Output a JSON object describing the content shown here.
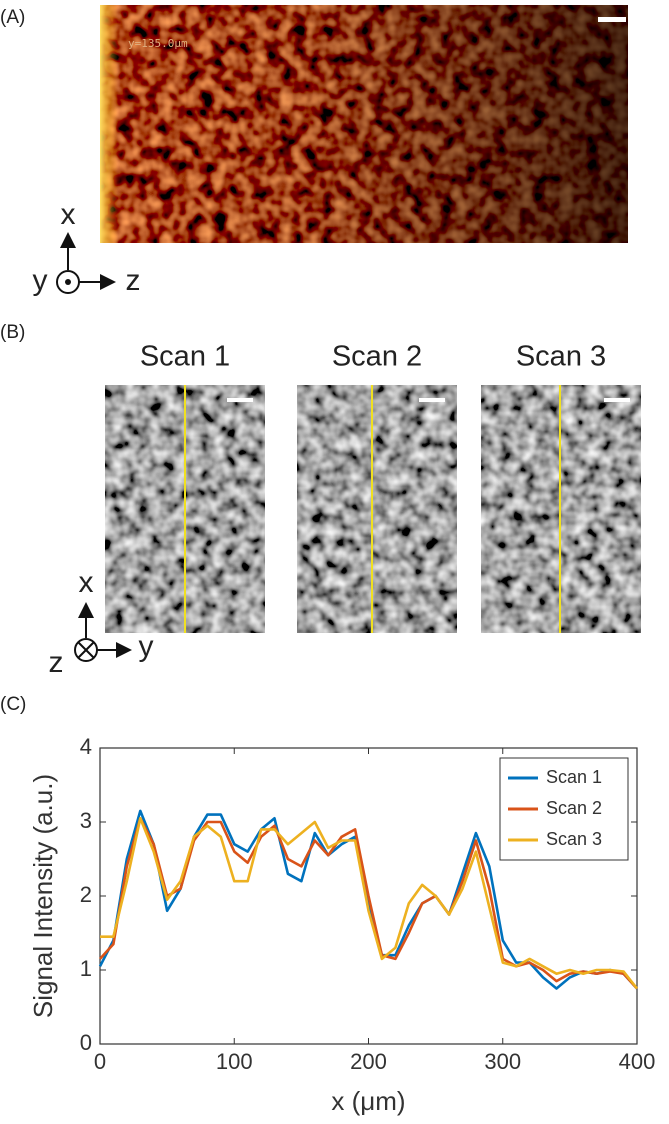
{
  "panel_a": {
    "label": "(A)",
    "image_label": "y=135.0μm",
    "axes": [
      "x",
      "y",
      "z"
    ]
  },
  "panel_b": {
    "label": "(B)",
    "titles": [
      "Scan 1",
      "Scan 2",
      "Scan 3"
    ],
    "axes": [
      "x",
      "z",
      "y"
    ]
  },
  "panel_c": {
    "label": "(C)"
  },
  "chart_data": {
    "type": "line",
    "xlabel": "x (μm)",
    "ylabel": "Signal Intensity (a.u.)",
    "x": [
      0,
      10,
      20,
      30,
      40,
      50,
      60,
      70,
      80,
      90,
      100,
      110,
      120,
      130,
      140,
      150,
      160,
      170,
      180,
      190,
      200,
      210,
      220,
      230,
      240,
      250,
      260,
      270,
      280,
      290,
      300,
      310,
      320,
      330,
      340,
      350,
      360,
      370,
      380,
      390,
      400
    ],
    "series": [
      {
        "name": "Scan 1",
        "color": "#0072bd",
        "values": [
          1.05,
          1.4,
          2.5,
          3.15,
          2.7,
          1.8,
          2.1,
          2.8,
          3.1,
          3.1,
          2.7,
          2.6,
          2.9,
          3.05,
          2.3,
          2.2,
          2.85,
          2.55,
          2.7,
          2.8,
          1.9,
          1.2,
          1.2,
          1.6,
          1.9,
          2.0,
          1.75,
          2.3,
          2.85,
          2.4,
          1.4,
          1.1,
          1.1,
          0.9,
          0.75,
          0.9,
          0.98,
          0.95,
          1.0,
          0.95,
          0.75
        ]
      },
      {
        "name": "Scan 2",
        "color": "#d95319",
        "values": [
          1.15,
          1.35,
          2.4,
          3.05,
          2.7,
          2.0,
          2.1,
          2.75,
          3.0,
          3.0,
          2.6,
          2.45,
          2.8,
          2.95,
          2.5,
          2.4,
          2.75,
          2.55,
          2.8,
          2.9,
          2.0,
          1.2,
          1.15,
          1.5,
          1.9,
          2.0,
          1.75,
          2.2,
          2.75,
          2.1,
          1.15,
          1.05,
          1.1,
          1.0,
          0.85,
          0.95,
          0.98,
          0.95,
          0.98,
          0.95,
          0.75
        ]
      },
      {
        "name": "Scan 3",
        "color": "#edb120",
        "values": [
          1.45,
          1.45,
          2.2,
          3.05,
          2.6,
          1.95,
          2.2,
          2.8,
          2.95,
          2.8,
          2.2,
          2.2,
          2.9,
          2.9,
          2.7,
          2.85,
          3.0,
          2.65,
          2.75,
          2.75,
          1.8,
          1.15,
          1.3,
          1.9,
          2.15,
          2.0,
          1.75,
          2.1,
          2.6,
          1.85,
          1.1,
          1.05,
          1.15,
          1.05,
          0.95,
          1.0,
          0.95,
          1.0,
          1.0,
          0.98,
          0.75
        ]
      }
    ],
    "xlim": [
      0,
      400
    ],
    "ylim": [
      0,
      4
    ],
    "xticks": [
      0,
      100,
      200,
      300,
      400
    ],
    "yticks": [
      0,
      1,
      2,
      3,
      4
    ],
    "legend": "upper right"
  }
}
